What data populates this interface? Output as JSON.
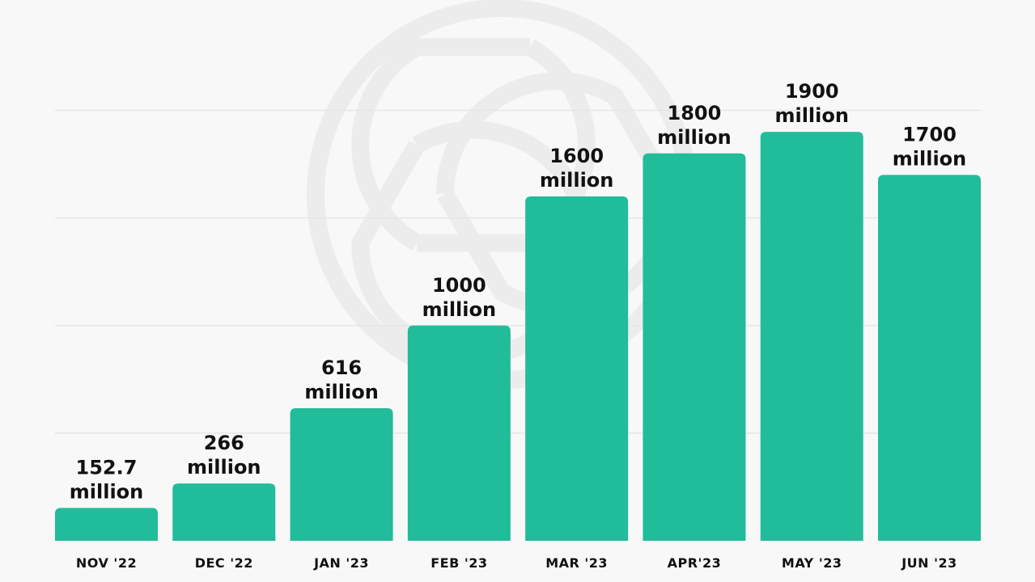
{
  "colors": {
    "background": "#f8f8f8",
    "bar": "#21bc99",
    "gridline": "#e6e6e6",
    "watermark": "#ececec",
    "text": "#111111"
  },
  "watermark_icon": "openai-logo-icon",
  "chart_data": {
    "type": "bar",
    "title": "",
    "xlabel": "",
    "ylabel": "",
    "grid": true,
    "ylim": [
      0,
      2400
    ],
    "categories": [
      "NOV '22",
      "DEC '22",
      "JAN '23",
      "FEB '23",
      "MAR '23",
      "APR'23",
      "MAY '23",
      "JUN '23"
    ],
    "values": [
      152.7,
      266,
      616,
      1000,
      1600,
      1800,
      1900,
      1700
    ],
    "value_labels": [
      [
        "152.7",
        "million"
      ],
      [
        "266",
        "million"
      ],
      [
        "616",
        "million"
      ],
      [
        "1000",
        "million"
      ],
      [
        "1600",
        "million"
      ],
      [
        "1800",
        "million"
      ],
      [
        "1900",
        "million"
      ],
      [
        "1700",
        "million"
      ]
    ]
  }
}
